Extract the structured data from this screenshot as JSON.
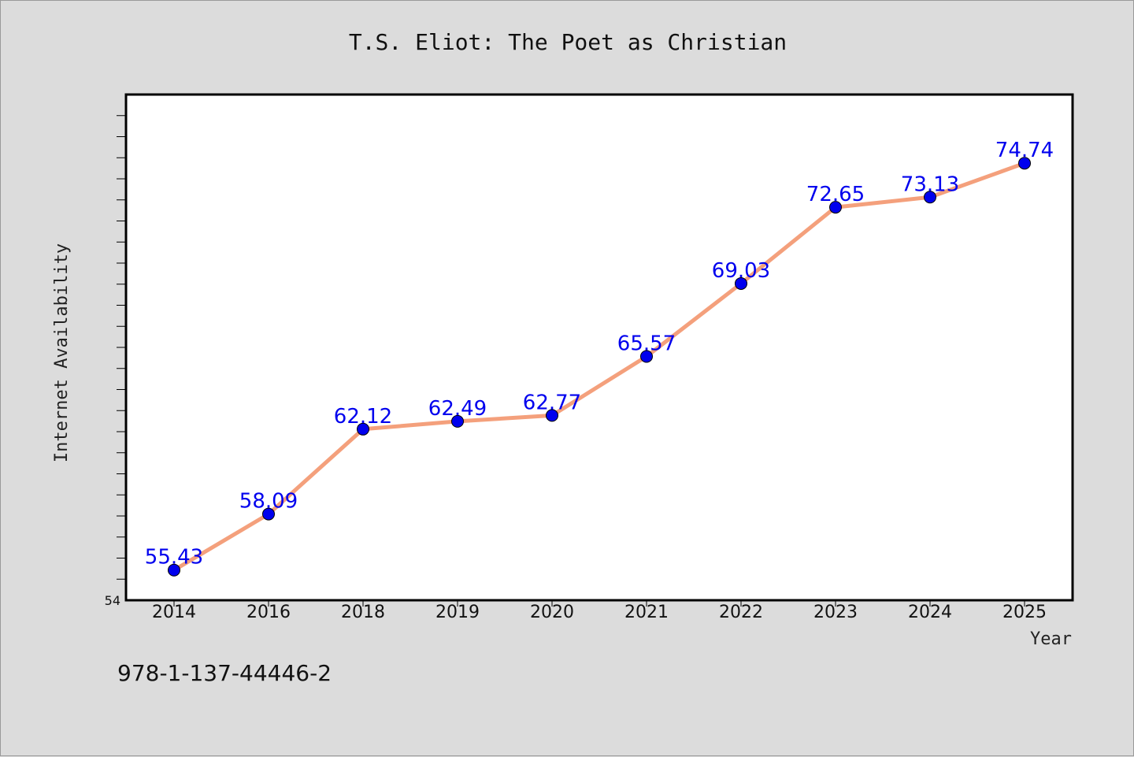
{
  "footer": {
    "isbn": "978-1-137-44446-2"
  },
  "colors": {
    "background": "#dcdcdc",
    "line": "#f4a07c",
    "marker": "#0000ee",
    "label": "#0000ee"
  },
  "chart_data": {
    "type": "line",
    "title": "T.S. Eliot: The Poet as Christian",
    "xlabel": "Year",
    "ylabel": "Internet Availability",
    "categories": [
      "2014",
      "2016",
      "2018",
      "2019",
      "2020",
      "2021",
      "2022",
      "2023",
      "2024",
      "2025"
    ],
    "values": [
      55.43,
      58.09,
      62.12,
      62.49,
      62.77,
      65.57,
      69.03,
      72.65,
      73.13,
      74.74
    ],
    "data_labels": [
      "55.43",
      "58.09",
      "62.12",
      "62.49",
      "62.77",
      "65.57",
      "69.03",
      "72.65",
      "73.13",
      "74.74"
    ],
    "y_min_label": "54",
    "ylim": [
      54,
      78
    ],
    "grid": false,
    "legend": "none"
  }
}
